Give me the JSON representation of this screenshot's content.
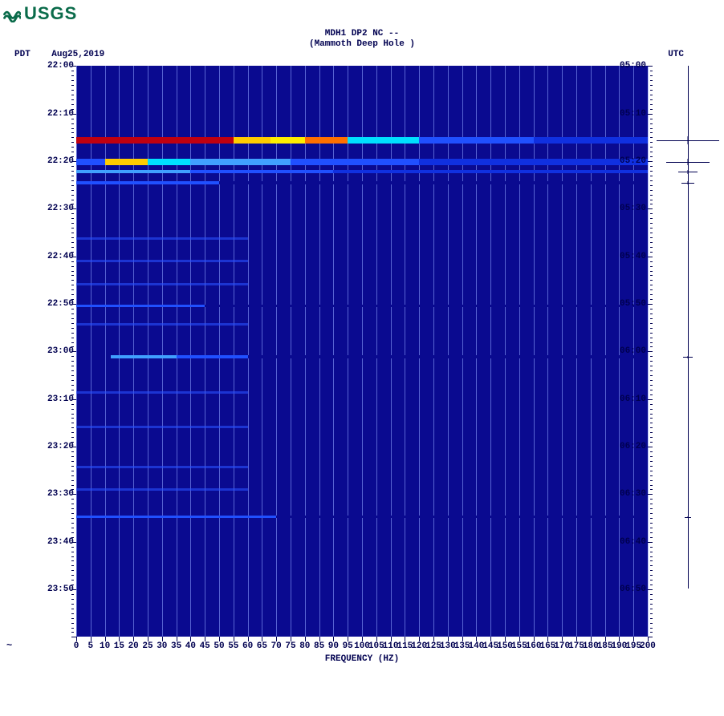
{
  "brand": "USGS",
  "title_line1": "MDH1 DP2 NC --",
  "title_line2": "(Mammoth Deep Hole )",
  "left_tz": "PDT",
  "date_str": "Aug25,2019",
  "right_tz": "UTC",
  "x_axis_title": "FREQUENCY (HZ)",
  "spectrogram": {
    "type": "spectrogram",
    "background_color": "#0a0a90",
    "grid_color": "rgba(140,160,255,0.6)",
    "freq_min": 0,
    "freq_max": 200,
    "x_tick_step": 5,
    "x_labels": [
      0,
      5,
      10,
      15,
      20,
      25,
      30,
      35,
      40,
      45,
      50,
      55,
      60,
      65,
      70,
      75,
      80,
      85,
      90,
      95,
      100,
      105,
      110,
      115,
      120,
      125,
      130,
      135,
      140,
      145,
      150,
      155,
      160,
      165,
      170,
      175,
      180,
      185,
      190,
      195,
      200
    ],
    "left_time_start": "22:00",
    "left_time_end": "24:00",
    "right_time_start": "05:00",
    "right_time_end": "07:00",
    "left_labels": [
      "22:00",
      "22:10",
      "22:20",
      "22:30",
      "22:40",
      "22:50",
      "23:00",
      "23:10",
      "23:20",
      "23:30",
      "23:40",
      "23:50"
    ],
    "right_labels": [
      "05:00",
      "05:10",
      "05:20",
      "05:30",
      "05:40",
      "05:50",
      "06:00",
      "06:10",
      "06:20",
      "06:30",
      "06:40",
      "06:50"
    ],
    "minor_tick_every_min": 1,
    "events": [
      {
        "time_frac": 0.13,
        "thickness": 8,
        "segments": [
          {
            "f0": 0,
            "f1": 55,
            "color": "#c00010"
          },
          {
            "f0": 55,
            "f1": 68,
            "color": "#ffcc00"
          },
          {
            "f0": 68,
            "f1": 80,
            "color": "#ffee00"
          },
          {
            "f0": 80,
            "f1": 95,
            "color": "#ff7000"
          },
          {
            "f0": 95,
            "f1": 120,
            "color": "#00e0ff"
          },
          {
            "f0": 120,
            "f1": 160,
            "color": "#2050ff"
          },
          {
            "f0": 160,
            "f1": 200,
            "color": "#1030e0"
          }
        ]
      },
      {
        "time_frac": 0.168,
        "thickness": 8,
        "segments": [
          {
            "f0": 0,
            "f1": 10,
            "color": "#2050ff"
          },
          {
            "f0": 10,
            "f1": 25,
            "color": "#ffcc00"
          },
          {
            "f0": 25,
            "f1": 40,
            "color": "#00e0ff"
          },
          {
            "f0": 40,
            "f1": 75,
            "color": "#40a0ff"
          },
          {
            "f0": 75,
            "f1": 120,
            "color": "#2050ff"
          },
          {
            "f0": 120,
            "f1": 200,
            "color": "#1030e0"
          }
        ]
      },
      {
        "time_frac": 0.185,
        "thickness": 4,
        "segments": [
          {
            "f0": 0,
            "f1": 40,
            "color": "#40a0ff"
          },
          {
            "f0": 40,
            "f1": 90,
            "color": "#2050ff"
          },
          {
            "f0": 90,
            "f1": 200,
            "color": "#1030e0"
          }
        ]
      },
      {
        "time_frac": 0.205,
        "thickness": 4,
        "segments": [
          {
            "f0": 0,
            "f1": 50,
            "color": "#2050ff"
          },
          {
            "f0": 50,
            "f1": 200,
            "color": "#0a0a90"
          }
        ]
      },
      {
        "time_frac": 0.42,
        "thickness": 3,
        "segments": [
          {
            "f0": 0,
            "f1": 45,
            "color": "#2050ff"
          },
          {
            "f0": 45,
            "f1": 200,
            "color": "#0a0a90"
          }
        ]
      },
      {
        "time_frac": 0.51,
        "thickness": 4,
        "segments": [
          {
            "f0": 12,
            "f1": 35,
            "color": "#40a0ff"
          },
          {
            "f0": 35,
            "f1": 60,
            "color": "#2050ff"
          },
          {
            "f0": 60,
            "f1": 200,
            "color": "#0a0a90"
          }
        ]
      },
      {
        "time_frac": 0.79,
        "thickness": 3,
        "segments": [
          {
            "f0": 0,
            "f1": 70,
            "color": "#2050ff"
          },
          {
            "f0": 70,
            "f1": 200,
            "color": "#0a0a90"
          }
        ]
      }
    ],
    "faint_rows": [
      0.3,
      0.34,
      0.38,
      0.45,
      0.57,
      0.63,
      0.7,
      0.74
    ]
  },
  "seismogram": {
    "events": [
      {
        "time_frac": 0.13,
        "amp": 1.0,
        "height": 10
      },
      {
        "time_frac": 0.168,
        "amp": 0.7,
        "height": 8
      },
      {
        "time_frac": 0.185,
        "amp": 0.3,
        "height": 5
      },
      {
        "time_frac": 0.205,
        "amp": 0.2,
        "height": 4
      },
      {
        "time_frac": 0.51,
        "amp": 0.15,
        "height": 3
      },
      {
        "time_frac": 0.79,
        "amp": 0.1,
        "height": 2
      }
    ]
  },
  "colors": {
    "text": "#000050",
    "brand": "#0a6b4a"
  }
}
